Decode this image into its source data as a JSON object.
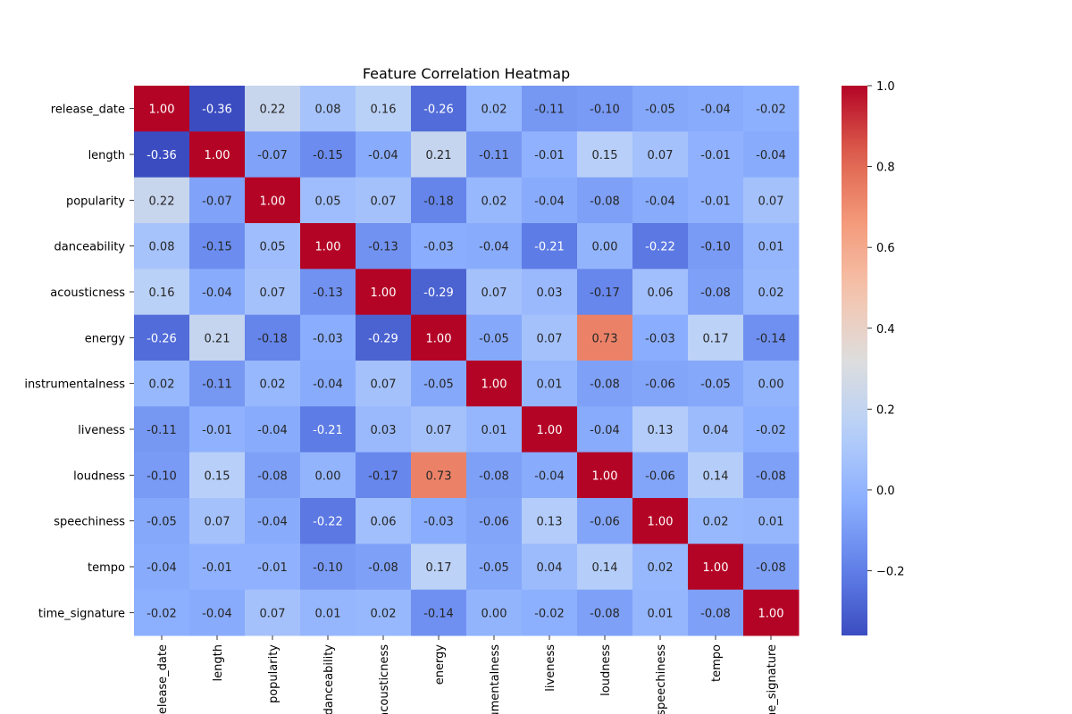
{
  "chart_data": {
    "type": "heatmap",
    "title": "Feature Correlation Heatmap",
    "row_labels": [
      "release_date",
      "length",
      "popularity",
      "danceability",
      "acousticness",
      "energy",
      "instrumentalness",
      "liveness",
      "loudness",
      "speechiness",
      "tempo",
      "time_signature"
    ],
    "col_labels": [
      "release_date",
      "length",
      "popularity",
      "danceability",
      "acousticness",
      "energy",
      "instrumentalness",
      "liveness",
      "loudness",
      "speechiness",
      "tempo",
      "time_signature"
    ],
    "values": [
      [
        1.0,
        -0.36,
        0.22,
        0.08,
        0.16,
        -0.26,
        0.02,
        -0.11,
        -0.1,
        -0.05,
        -0.04,
        -0.02
      ],
      [
        -0.36,
        1.0,
        -0.07,
        -0.15,
        -0.04,
        0.21,
        -0.11,
        -0.01,
        0.15,
        0.07,
        -0.01,
        -0.04
      ],
      [
        0.22,
        -0.07,
        1.0,
        0.05,
        0.07,
        -0.18,
        0.02,
        -0.04,
        -0.08,
        -0.04,
        -0.01,
        0.07
      ],
      [
        0.08,
        -0.15,
        0.05,
        1.0,
        -0.13,
        -0.03,
        -0.04,
        -0.21,
        0.0,
        -0.22,
        -0.1,
        0.01
      ],
      [
        0.16,
        -0.04,
        0.07,
        -0.13,
        1.0,
        -0.29,
        0.07,
        0.03,
        -0.17,
        0.06,
        -0.08,
        0.02
      ],
      [
        -0.26,
        0.21,
        -0.18,
        -0.03,
        -0.29,
        1.0,
        -0.05,
        0.07,
        0.73,
        -0.03,
        0.17,
        -0.14
      ],
      [
        0.02,
        -0.11,
        0.02,
        -0.04,
        0.07,
        -0.05,
        1.0,
        0.01,
        -0.08,
        -0.06,
        -0.05,
        0.0
      ],
      [
        -0.11,
        -0.01,
        -0.04,
        -0.21,
        0.03,
        0.07,
        0.01,
        1.0,
        -0.04,
        0.13,
        0.04,
        -0.02
      ],
      [
        -0.1,
        0.15,
        -0.08,
        0.0,
        -0.17,
        0.73,
        -0.08,
        -0.04,
        1.0,
        -0.06,
        0.14,
        -0.08
      ],
      [
        -0.05,
        0.07,
        -0.04,
        -0.22,
        0.06,
        -0.03,
        -0.06,
        0.13,
        -0.06,
        1.0,
        0.02,
        0.01
      ],
      [
        -0.04,
        -0.01,
        -0.01,
        -0.1,
        -0.08,
        0.17,
        -0.05,
        0.04,
        0.14,
        0.02,
        1.0,
        -0.08
      ],
      [
        -0.02,
        -0.04,
        0.07,
        0.01,
        0.02,
        -0.14,
        0.0,
        -0.02,
        -0.08,
        0.01,
        -0.08,
        1.0
      ]
    ],
    "value_format": "2 decimals",
    "colormap": "coolwarm",
    "colorbar": {
      "range": [
        -0.36,
        1.0
      ],
      "ticks": [
        1.0,
        0.8,
        0.6,
        0.4,
        0.2,
        0.0,
        -0.2
      ],
      "tick_labels": [
        "1.0",
        "0.8",
        "0.6",
        "0.4",
        "0.2",
        "0.0",
        "−0.2"
      ],
      "placement": "right"
    },
    "grid": false
  }
}
